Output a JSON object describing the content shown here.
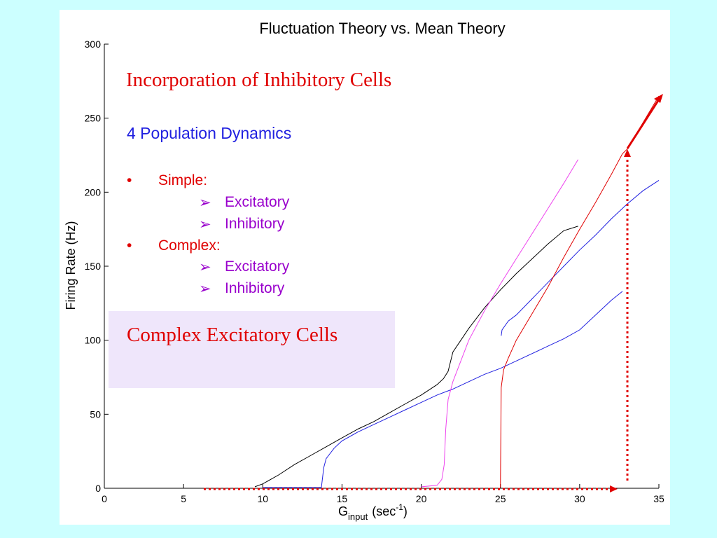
{
  "slide": {
    "heading": "Incorporation of Inhibitory Cells",
    "subheading": "4 Population Dynamics",
    "bullets": [
      {
        "marker": "•",
        "label": "Simple:",
        "subitems": [
          {
            "marker": "➢",
            "label": "Excitatory"
          },
          {
            "marker": "➢",
            "label": "Inhibitory"
          }
        ]
      },
      {
        "marker": "•",
        "label": "Complex:",
        "subitems": [
          {
            "marker": "➢",
            "label": "Excitatory"
          },
          {
            "marker": "➢",
            "label": "Inhibitory"
          }
        ]
      }
    ],
    "highlight": "Complex Excitatory Cells"
  },
  "colors": {
    "red": "#e00000",
    "blue": "#2020e0",
    "purple": "#9900cc",
    "magenta": "#ee44ee",
    "black": "#000000",
    "highlight_bg": "#efe6fb",
    "background": "#ccffff"
  },
  "chart_data": {
    "type": "line",
    "title": "Fluctuation Theory vs. Mean Theory",
    "xlabel_main": "G",
    "xlabel_sub": "input",
    "xlabel_unit_open": "(sec",
    "xlabel_sup": "-1",
    "xlabel_unit_close": ")",
    "ylabel": "Firing Rate (Hz)",
    "xlim": [
      0,
      35
    ],
    "ylim": [
      0,
      300
    ],
    "xticks": [
      0,
      5,
      10,
      15,
      20,
      25,
      30,
      35
    ],
    "yticks": [
      0,
      50,
      100,
      150,
      200,
      250,
      300
    ],
    "grid": false,
    "series": [
      {
        "color": "#000000",
        "x": [
          9.5,
          10,
          11,
          12,
          13,
          14,
          15,
          16,
          17,
          18,
          19,
          20,
          21,
          21.4,
          21.7,
          22,
          23,
          24,
          25,
          26,
          27,
          28,
          29,
          29.9
        ],
        "y": [
          1,
          3,
          9,
          16,
          22,
          28,
          34,
          40,
          45,
          51,
          57,
          63,
          70,
          74,
          79,
          92,
          108,
          122,
          134,
          145,
          155,
          165,
          174,
          177
        ]
      },
      {
        "color": "#2020e0",
        "x": [
          10,
          13.7,
          13.75,
          13.85,
          14,
          14.5,
          15,
          16,
          17,
          18,
          19,
          20,
          21,
          22,
          23,
          24,
          25,
          26,
          27,
          28,
          29,
          30,
          31,
          32,
          32.7
        ],
        "y": [
          0.5,
          0.5,
          5,
          14,
          20,
          27,
          32,
          38,
          43,
          48,
          53,
          58,
          63,
          67,
          72,
          77,
          81,
          86,
          91,
          96,
          101,
          107,
          117,
          127,
          133
        ]
      },
      {
        "color": "#2020e0",
        "x": [
          25.05,
          25.1,
          25.5,
          26,
          27,
          28,
          29,
          30,
          31,
          32,
          33,
          34,
          35
        ],
        "y": [
          103,
          107,
          113,
          117,
          128,
          139,
          150,
          161,
          171,
          182,
          192,
          201,
          208
        ]
      },
      {
        "color": "#ee44ee",
        "x": [
          20,
          21,
          21.3,
          21.45,
          21.55,
          21.7,
          22,
          23,
          24,
          25,
          26,
          27,
          28,
          29,
          29.9
        ],
        "y": [
          1,
          2,
          6,
          16,
          40,
          60,
          72,
          100,
          120,
          138,
          155,
          172,
          189,
          206,
          222
        ]
      },
      {
        "color": "#e00000",
        "x": [
          25,
          25.05,
          25.2,
          25.5,
          26,
          27,
          28,
          29,
          30,
          31,
          32,
          32.7
        ],
        "y": [
          0.5,
          68,
          80,
          88,
          100,
          118,
          136,
          156,
          175,
          193,
          212,
          226
        ]
      },
      {
        "color": "#e00000",
        "x": [
          32.7,
          33,
          35
        ],
        "y": [
          226,
          229,
          265
        ]
      }
    ]
  }
}
